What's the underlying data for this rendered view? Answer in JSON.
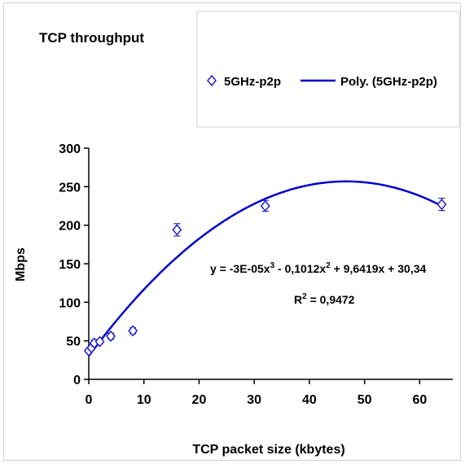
{
  "chart_data": {
    "type": "scatter",
    "title": "TCP throughput",
    "xlabel": "TCP packet size (kbytes)",
    "ylabel": "Mbps",
    "xlim": [
      0,
      66
    ],
    "ylim": [
      0,
      300
    ],
    "x_ticks": [
      "0",
      "10",
      "20",
      "30",
      "40",
      "50",
      "60"
    ],
    "y_ticks": [
      "0",
      "50",
      "100",
      "150",
      "200",
      "250",
      "300"
    ],
    "grid": false,
    "legend_position": "top-right",
    "series": [
      {
        "name": "5GHz-p2p",
        "marker": "diamond",
        "color": "#2222cc",
        "x": [
          0,
          0.5,
          1,
          2,
          4,
          8,
          16,
          32,
          64
        ],
        "y": [
          37,
          41,
          47,
          49,
          56,
          63,
          194,
          225,
          227
        ],
        "err": [
          3,
          3,
          4,
          3,
          4,
          4,
          8,
          7,
          8
        ]
      },
      {
        "name": "Poly. (5GHz-p2p)",
        "type": "line",
        "color": "#0000cc",
        "coefficients": [
          -3e-05,
          -0.1012,
          9.6419,
          30.34
        ]
      }
    ],
    "annotations": {
      "equation": "y = -3E-05x",
      "equation_sup1": "3",
      "equation_mid": " - 0,1012x",
      "equation_sup2": "2",
      "equation_end": " + 9,6419x + 30,34",
      "r2_label": "R",
      "r2_sup": "2",
      "r2_value": " = 0,9472"
    }
  }
}
